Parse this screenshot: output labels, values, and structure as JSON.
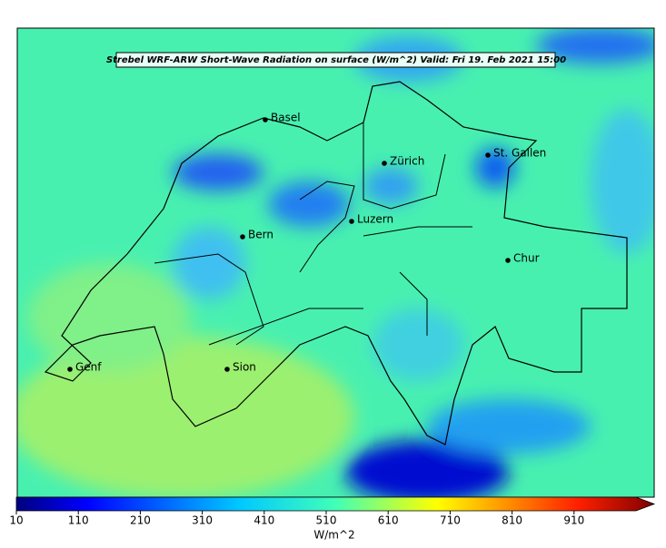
{
  "title": "Strebel WRF-ARW Short-Wave Radiation on surface (W/m^2)    Valid: Fri 19. Feb 2021 15:00",
  "cities": [
    "Basel",
    "Zürich",
    "St. Gallen",
    "Bern",
    "Luzern",
    "Chur",
    "Genf",
    "Sion"
  ],
  "colorbar": {
    "label": "W/m^2",
    "lim": [
      10,
      1010
    ],
    "ticks": [
      10,
      110,
      210,
      310,
      410,
      510,
      610,
      710,
      810,
      910
    ]
  }
}
